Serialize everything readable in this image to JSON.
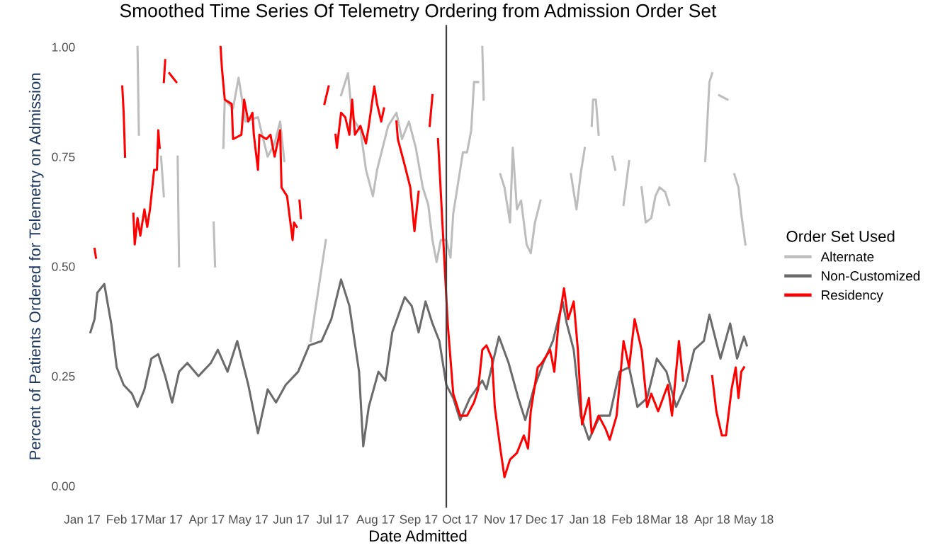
{
  "chart_data": {
    "type": "line",
    "title": "Smoothed Time Series Of Telemetry Ordering from Admission Order Set",
    "xlabel": "Date Admitted",
    "ylabel": "Percent of Patients Ordered for Telemetry on Admission",
    "legend_title": "Order Set Used",
    "legend": "right",
    "grid": false,
    "xlim": [
      "2017-01-01",
      "2018-05-01"
    ],
    "ylim": [
      -0.05,
      1.05
    ],
    "xticks": [
      {
        "value": "2017-01-01",
        "label": "Jan 17"
      },
      {
        "value": "2017-02-01",
        "label": "Feb 17"
      },
      {
        "value": "2017-03-01",
        "label": "Mar 17"
      },
      {
        "value": "2017-04-01",
        "label": "Apr 17"
      },
      {
        "value": "2017-05-01",
        "label": "May 17"
      },
      {
        "value": "2017-06-01",
        "label": "Jun 17"
      },
      {
        "value": "2017-07-01",
        "label": "Jul 17"
      },
      {
        "value": "2017-08-01",
        "label": "Aug 17"
      },
      {
        "value": "2017-09-01",
        "label": "Sep 17"
      },
      {
        "value": "2017-10-01",
        "label": "Oct 17"
      },
      {
        "value": "2017-11-01",
        "label": "Nov 17"
      },
      {
        "value": "2017-12-01",
        "label": "Dec 17"
      },
      {
        "value": "2018-01-01",
        "label": "Jan 18"
      },
      {
        "value": "2018-02-01",
        "label": "Feb 18"
      },
      {
        "value": "2018-03-01",
        "label": "Mar 18"
      },
      {
        "value": "2018-04-01",
        "label": "Apr 18"
      },
      {
        "value": "2018-05-01",
        "label": "May 18"
      }
    ],
    "yticks": [
      {
        "value": 0,
        "label": "0.00"
      },
      {
        "value": 0.25,
        "label": "0.25"
      },
      {
        "value": 0.5,
        "label": "0.50"
      },
      {
        "value": 0.75,
        "label": "0.75"
      },
      {
        "value": 1,
        "label": "1.00"
      }
    ],
    "ref_lines": [
      {
        "axis": "x",
        "value": "2017-09-21",
        "color": "#404040"
      }
    ],
    "series": [
      {
        "name": "Alternate",
        "color": "#bdbdbd",
        "x": [
          "2017-02-10",
          "2017-02-11",
          "2017-02-12",
          "2017-02-27",
          "2017-03-01",
          "2017-03-02",
          "2017-03-11",
          "2017-03-12",
          "2017-03-13",
          "2017-04-06",
          "2017-04-07",
          "2017-04-08",
          "2017-04-13",
          "2017-04-14",
          "2017-04-20",
          "2017-04-24",
          "2017-04-29",
          "2017-05-08",
          "2017-05-11",
          "2017-05-15",
          "2017-05-20",
          "2017-05-24",
          "2017-05-27",
          "2017-05-28",
          "2017-06-15",
          "2017-06-26",
          "2017-06-27",
          "2017-07-07",
          "2017-07-12",
          "2017-07-15",
          "2017-07-21",
          "2017-07-25",
          "2017-07-30",
          "2017-08-02",
          "2017-08-06",
          "2017-08-10",
          "2017-08-16",
          "2017-08-20",
          "2017-08-25",
          "2017-08-30",
          "2017-09-04",
          "2017-09-08",
          "2017-09-11",
          "2017-09-14",
          "2017-09-17",
          "2017-09-21",
          "2017-09-24",
          "2017-09-26",
          "2017-10-03",
          "2017-10-06",
          "2017-10-09",
          "2017-10-11",
          "2017-10-14",
          "2017-10-15",
          "2017-10-17",
          "2017-10-18",
          "2017-10-19",
          "2017-10-30",
          "2017-11-02",
          "2017-11-06",
          "2017-11-08",
          "2017-11-11",
          "2017-11-14",
          "2017-11-18",
          "2017-11-21",
          "2017-11-24",
          "2017-11-28",
          "2017-11-29",
          "2017-12-20",
          "2017-12-24",
          "2017-12-27",
          "2017-12-30",
          "2017-12-31",
          "2018-01-04",
          "2018-01-05",
          "2018-01-07",
          "2018-01-09",
          "2018-01-10",
          "2018-01-19",
          "2018-01-21",
          "2018-01-22",
          "2018-01-27",
          "2018-01-31",
          "2018-02-01",
          "2018-02-09",
          "2018-02-12",
          "2018-02-16",
          "2018-02-19",
          "2018-02-22",
          "2018-02-26",
          "2018-03-01",
          "2018-03-02",
          "2018-03-27",
          "2018-03-30",
          "2018-04-01",
          "2018-04-02",
          "2018-04-06",
          "2018-04-12",
          "2018-04-13",
          "2018-04-17",
          "2018-04-20",
          "2018-04-22",
          "2018-04-25"
        ],
        "values": [
          1.0,
          0.8,
          null,
          0.75,
          0.66,
          null,
          0.75,
          0.5,
          null,
          0.6,
          0.5,
          null,
          0.77,
          0.88,
          0.86,
          0.93,
          0.83,
          0.84,
          0.8,
          0.75,
          0.78,
          0.83,
          0.74,
          null,
          0.33,
          0.56,
          null,
          0.89,
          0.94,
          0.84,
          0.81,
          0.72,
          0.66,
          0.72,
          0.77,
          0.82,
          0.85,
          0.79,
          0.83,
          0.77,
          0.68,
          0.64,
          0.56,
          0.51,
          0.56,
          0.56,
          0.52,
          0.62,
          0.76,
          0.76,
          0.81,
          0.92,
          0.92,
          null,
          1.0,
          0.88,
          null,
          0.71,
          0.68,
          0.6,
          0.77,
          0.63,
          0.65,
          0.55,
          0.53,
          0.6,
          0.65,
          null,
          0.71,
          0.63,
          0.71,
          0.77,
          null,
          0.82,
          0.88,
          0.88,
          0.8,
          null,
          0.75,
          0.72,
          null,
          0.64,
          0.74,
          null,
          0.68,
          0.6,
          0.61,
          0.66,
          0.68,
          0.67,
          0.64,
          null,
          0.74,
          0.92,
          0.94,
          null,
          0.89,
          0.88,
          null,
          0.71,
          0.68,
          0.62,
          0.55
        ]
      },
      {
        "name": "Non-Customized",
        "color": "#6b6b6b",
        "x": [
          "2017-01-07",
          "2017-01-10",
          "2017-01-12",
          "2017-01-17",
          "2017-01-22",
          "2017-01-26",
          "2017-01-31",
          "2017-02-06",
          "2017-02-10",
          "2017-02-15",
          "2017-02-20",
          "2017-02-25",
          "2017-03-02",
          "2017-03-07",
          "2017-03-12",
          "2017-03-18",
          "2017-03-26",
          "2017-04-04",
          "2017-04-09",
          "2017-04-16",
          "2017-04-23",
          "2017-05-01",
          "2017-05-08",
          "2017-05-15",
          "2017-05-21",
          "2017-05-28",
          "2017-06-06",
          "2017-06-14",
          "2017-06-23",
          "2017-06-30",
          "2017-07-07",
          "2017-07-13",
          "2017-07-20",
          "2017-07-23",
          "2017-07-27",
          "2017-08-03",
          "2017-08-08",
          "2017-08-13",
          "2017-08-22",
          "2017-08-27",
          "2017-09-01",
          "2017-09-06",
          "2017-09-11",
          "2017-09-16",
          "2017-09-21",
          "2017-09-26",
          "2017-10-01",
          "2017-10-08",
          "2017-10-17",
          "2017-10-20",
          "2017-10-29",
          "2017-11-05",
          "2017-11-12",
          "2017-11-17",
          "2017-11-23",
          "2017-11-30",
          "2017-12-07",
          "2017-12-14",
          "2017-12-17",
          "2017-12-22",
          "2017-12-27",
          "2018-01-02",
          "2018-01-10",
          "2018-01-17",
          "2018-01-24",
          "2018-01-31",
          "2018-02-06",
          "2018-02-13",
          "2018-02-20",
          "2018-02-27",
          "2018-03-06",
          "2018-03-13",
          "2018-03-19",
          "2018-03-26",
          "2018-03-30",
          "2018-04-07",
          "2018-04-14",
          "2018-04-19",
          "2018-04-24",
          "2018-04-26"
        ],
        "values": [
          0.35,
          0.38,
          0.44,
          0.46,
          0.37,
          0.27,
          0.23,
          0.21,
          0.18,
          0.22,
          0.29,
          0.3,
          0.25,
          0.19,
          0.26,
          0.28,
          0.25,
          0.28,
          0.31,
          0.26,
          0.33,
          0.23,
          0.12,
          0.22,
          0.19,
          0.23,
          0.26,
          0.32,
          0.33,
          0.38,
          0.47,
          0.41,
          0.26,
          0.09,
          0.18,
          0.26,
          0.24,
          0.35,
          0.43,
          0.41,
          0.35,
          0.42,
          0.37,
          0.33,
          0.23,
          0.2,
          0.15,
          0.2,
          0.24,
          0.22,
          0.34,
          0.28,
          0.2,
          0.15,
          0.22,
          0.28,
          0.33,
          0.42,
          0.37,
          0.31,
          0.16,
          0.105,
          0.16,
          0.16,
          0.26,
          0.27,
          0.18,
          0.2,
          0.29,
          0.26,
          0.18,
          0.23,
          0.31,
          0.33,
          0.39,
          0.29,
          0.37,
          0.29,
          0.34,
          0.32
        ]
      },
      {
        "name": "Residency",
        "color": "#ff0000",
        "x": [
          "2017-01-10",
          "2017-01-11",
          "2017-01-12",
          "2017-01-30",
          "2017-01-31",
          "2017-02-01",
          "2017-02-02",
          "2017-02-07",
          "2017-02-08",
          "2017-02-10",
          "2017-02-12",
          "2017-02-13",
          "2017-02-15",
          "2017-02-17",
          "2017-02-19",
          "2017-02-22",
          "2017-02-24",
          "2017-02-25",
          "2017-02-26",
          "2017-02-27",
          "2017-03-01",
          "2017-03-02",
          "2017-03-03",
          "2017-03-05",
          "2017-03-10",
          "2017-03-11",
          "2017-04-11",
          "2017-04-12",
          "2017-04-14",
          "2017-04-19",
          "2017-04-20",
          "2017-04-26",
          "2017-04-28",
          "2017-05-01",
          "2017-05-04",
          "2017-05-05",
          "2017-05-08",
          "2017-05-09",
          "2017-05-14",
          "2017-05-17",
          "2017-05-20",
          "2017-05-24",
          "2017-05-25",
          "2017-05-29",
          "2017-06-02",
          "2017-06-03",
          "2017-06-05",
          "2017-06-06",
          "2017-06-07",
          "2017-06-08",
          "2017-06-09",
          "2017-06-25",
          "2017-06-28",
          "2017-06-29",
          "2017-07-03",
          "2017-07-04",
          "2017-07-07",
          "2017-07-10",
          "2017-07-13",
          "2017-07-15",
          "2017-07-17",
          "2017-07-21",
          "2017-07-25",
          "2017-07-27",
          "2017-07-31",
          "2017-08-02",
          "2017-08-05",
          "2017-08-07",
          "2017-08-08",
          "2017-08-16",
          "2017-08-17",
          "2017-08-22",
          "2017-08-26",
          "2017-08-29",
          "2017-09-01",
          "2017-09-02",
          "2017-09-09",
          "2017-09-11",
          "2017-09-12",
          "2017-09-15",
          "2017-09-19",
          "2017-09-22",
          "2017-09-26",
          "2017-09-28",
          "2017-10-01",
          "2017-10-06",
          "2017-10-11",
          "2017-10-14",
          "2017-10-17",
          "2017-10-20",
          "2017-10-24",
          "2017-10-26",
          "2017-10-30",
          "2017-11-02",
          "2017-11-06",
          "2017-11-11",
          "2017-11-16",
          "2017-11-19",
          "2017-11-21",
          "2017-11-26",
          "2017-11-29",
          "2017-12-05",
          "2017-12-08",
          "2017-12-11",
          "2017-12-15",
          "2017-12-18",
          "2017-12-22",
          "2017-12-25",
          "2017-12-28",
          "2018-01-02",
          "2018-01-04",
          "2018-01-09",
          "2018-01-14",
          "2018-01-17",
          "2018-01-22",
          "2018-01-27",
          "2018-01-31",
          "2018-02-04",
          "2018-02-09",
          "2018-02-13",
          "2018-02-16",
          "2018-02-21",
          "2018-02-28",
          "2018-03-03",
          "2018-03-08",
          "2018-03-11",
          "2018-03-12",
          "2018-04-01",
          "2018-04-04",
          "2018-04-08",
          "2018-04-11",
          "2018-04-15",
          "2018-04-18",
          "2018-04-20",
          "2018-04-22",
          "2018-04-24"
        ],
        "values": [
          0.54,
          0.52,
          null,
          0.91,
          0.85,
          0.75,
          null,
          0.62,
          0.55,
          0.61,
          0.57,
          0.59,
          0.63,
          0.59,
          0.63,
          0.72,
          0.72,
          0.81,
          0.77,
          null,
          0.92,
          0.97,
          null,
          0.94,
          0.92,
          null,
          1.0,
          0.95,
          0.88,
          0.87,
          0.79,
          0.8,
          0.88,
          0.83,
          0.85,
          0.8,
          0.72,
          0.8,
          0.79,
          0.8,
          0.75,
          0.81,
          0.68,
          0.66,
          0.56,
          0.6,
          0.59,
          null,
          0.65,
          0.61,
          null,
          0.87,
          0.91,
          null,
          0.8,
          0.77,
          0.85,
          0.84,
          0.8,
          0.88,
          0.8,
          0.82,
          0.78,
          0.82,
          0.91,
          0.87,
          0.83,
          0.86,
          null,
          0.83,
          0.79,
          0.73,
          0.68,
          0.58,
          0.67,
          null,
          0.82,
          0.89,
          null,
          0.79,
          0.55,
          0.37,
          0.21,
          0.19,
          0.16,
          0.16,
          0.19,
          0.22,
          0.31,
          0.32,
          0.29,
          0.18,
          0.085,
          0.02,
          0.06,
          0.075,
          0.115,
          0.085,
          0.17,
          0.27,
          0.28,
          0.31,
          0.26,
          0.37,
          0.45,
          0.38,
          0.42,
          0.31,
          0.14,
          0.2,
          0.12,
          0.16,
          0.13,
          0.105,
          0.16,
          0.33,
          0.27,
          0.38,
          0.31,
          0.18,
          0.21,
          0.17,
          0.23,
          0.16,
          0.33,
          0.24,
          null,
          0.25,
          0.17,
          0.115,
          0.115,
          0.22,
          0.27,
          0.2,
          0.26,
          0.27
        ]
      }
    ]
  }
}
